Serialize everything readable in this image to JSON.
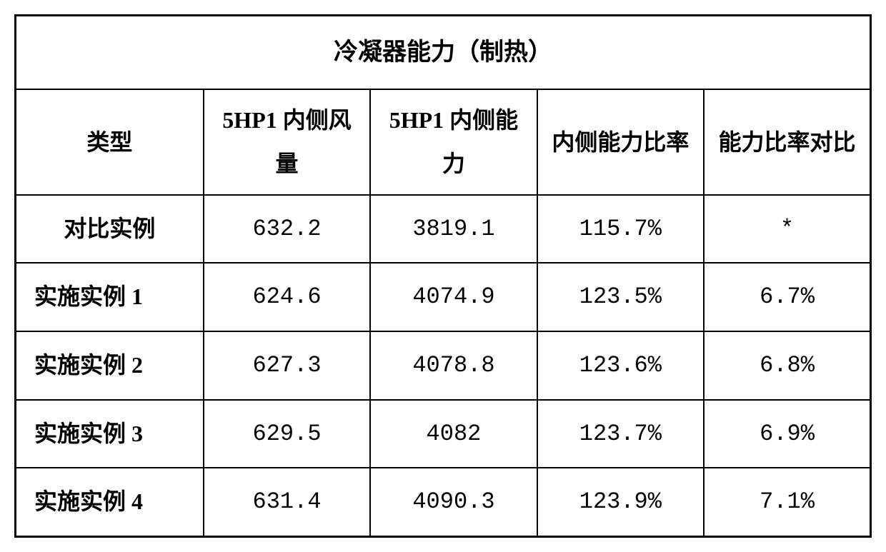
{
  "table": {
    "title": "冷凝器能力（制热）",
    "columns": [
      "类型",
      "5HP1 内侧风量",
      "5HP1 内侧能力",
      "内侧能力比率",
      "能力比率对比"
    ],
    "rows": [
      {
        "label": "对比实例",
        "label_align": "center",
        "values": [
          "632.2",
          "3819.1",
          "115.7%",
          "*"
        ]
      },
      {
        "label": "实施实例 1",
        "label_align": "left",
        "values": [
          "624.6",
          "4074.9",
          "123.5%",
          "6.7%"
        ]
      },
      {
        "label": "实施实例 2",
        "label_align": "left",
        "values": [
          "627.3",
          "4078.8",
          "123.6%",
          "6.8%"
        ]
      },
      {
        "label": "实施实例 3",
        "label_align": "left",
        "values": [
          "629.5",
          "4082",
          "123.7%",
          "6.9%"
        ]
      },
      {
        "label": "实施实例 4",
        "label_align": "left",
        "values": [
          "631.4",
          "4090.3",
          "123.9%",
          "7.1%"
        ]
      }
    ],
    "styling": {
      "border_color": "#000000",
      "background_color": "#ffffff",
      "text_color": "#000000",
      "title_fontsize": 34,
      "header_fontsize": 32,
      "cell_fontsize": 32,
      "border_width_outer": 3,
      "border_width_inner": 2,
      "font_family": "SimSun"
    }
  }
}
